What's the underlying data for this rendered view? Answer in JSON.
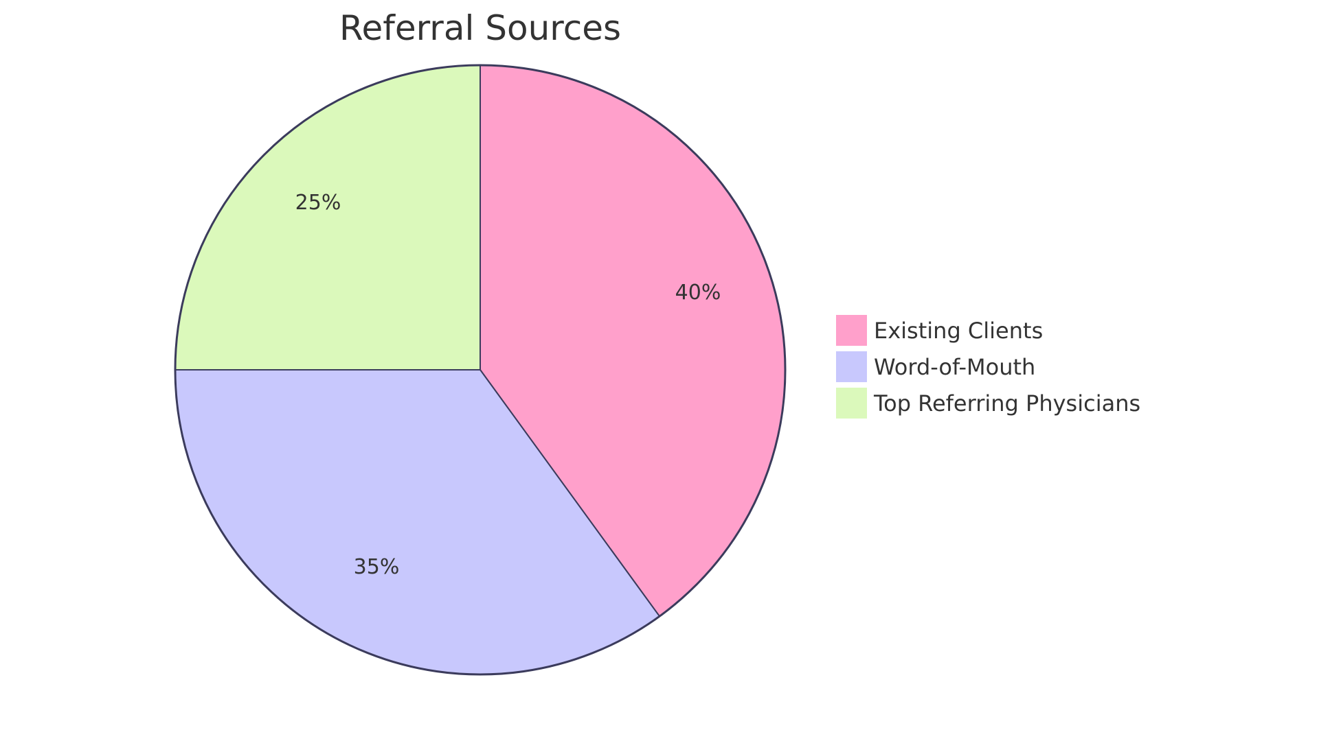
{
  "chart_data": {
    "type": "pie",
    "title": "Referral Sources",
    "categories": [
      "Existing Clients",
      "Word-of-Mouth",
      "Top Referring Physicians"
    ],
    "values": [
      40,
      35,
      25
    ],
    "labels": [
      "40%",
      "35%",
      "25%"
    ],
    "colors": [
      "#ffa0cb",
      "#c8c8fd",
      "#dbf9bb"
    ],
    "stroke_color": "#3b3b5c",
    "legend_position": "right"
  },
  "title": "Referral Sources",
  "legend": [
    {
      "label": "Existing Clients",
      "color": "#ffa0cb"
    },
    {
      "label": "Word-of-Mouth",
      "color": "#c8c8fd"
    },
    {
      "label": "Top Referring Physicians",
      "color": "#dbf9bb"
    }
  ],
  "slices": [
    {
      "label": "40%"
    },
    {
      "label": "35%"
    },
    {
      "label": "25%"
    }
  ]
}
